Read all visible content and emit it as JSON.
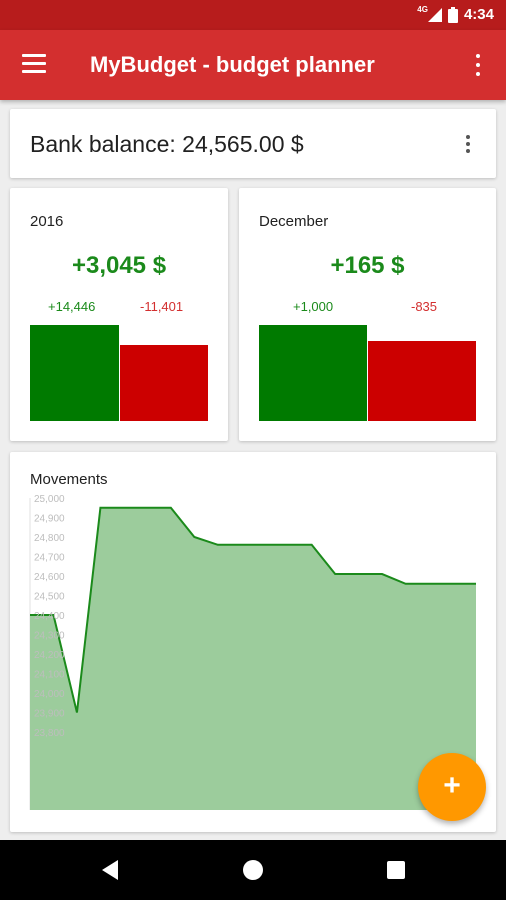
{
  "status_bar": {
    "time": "4:34",
    "network": "4G"
  },
  "app_bar": {
    "title": "MyBudget - budget planner",
    "icons": [
      "menu-icon",
      "overflow-menu-icon"
    ]
  },
  "balance": {
    "label": "Bank balance: 24,565.00 $"
  },
  "summaries": [
    {
      "period": "2016",
      "net": "+3,045 $",
      "income": "+14,446",
      "expense": "-11,401",
      "income_value": 14446,
      "expense_value": 11401
    },
    {
      "period": "December",
      "net": "+165 $",
      "income": "+1,000",
      "expense": "-835",
      "income_value": 1000,
      "expense_value": 835
    }
  ],
  "movements": {
    "title": "Movements"
  },
  "chart_data": {
    "type": "area",
    "title": "Movements",
    "xlabel": "",
    "ylabel": "",
    "ylim": [
      23400,
      25000
    ],
    "y_ticks": [
      "25,000",
      "24,900",
      "24,800",
      "24,700",
      "24,600",
      "24,500",
      "24,400",
      "24,300",
      "24,200",
      "24,100",
      "24,000",
      "23,900",
      "23,800"
    ],
    "series": [
      {
        "values": [
          24400,
          24400,
          23900,
          24950,
          24950,
          24950,
          24950,
          24800,
          24760,
          24760,
          24760,
          24760,
          24760,
          24610,
          24610,
          24610,
          24560,
          24560,
          24560,
          24560
        ]
      }
    ],
    "grid": false,
    "colors": {
      "fill": "#9ccc9c",
      "line": "#1b8a1b"
    }
  },
  "fab": {
    "label": "+",
    "icon": "add-icon"
  },
  "nav_bar": {
    "icons": [
      "back-icon",
      "home-icon",
      "recents-icon"
    ]
  },
  "colors": {
    "primary": "#d32f2f",
    "primary_dark": "#b71c1c",
    "income": "#007a00",
    "expense": "#cc0000",
    "accent": "#ff9800"
  }
}
